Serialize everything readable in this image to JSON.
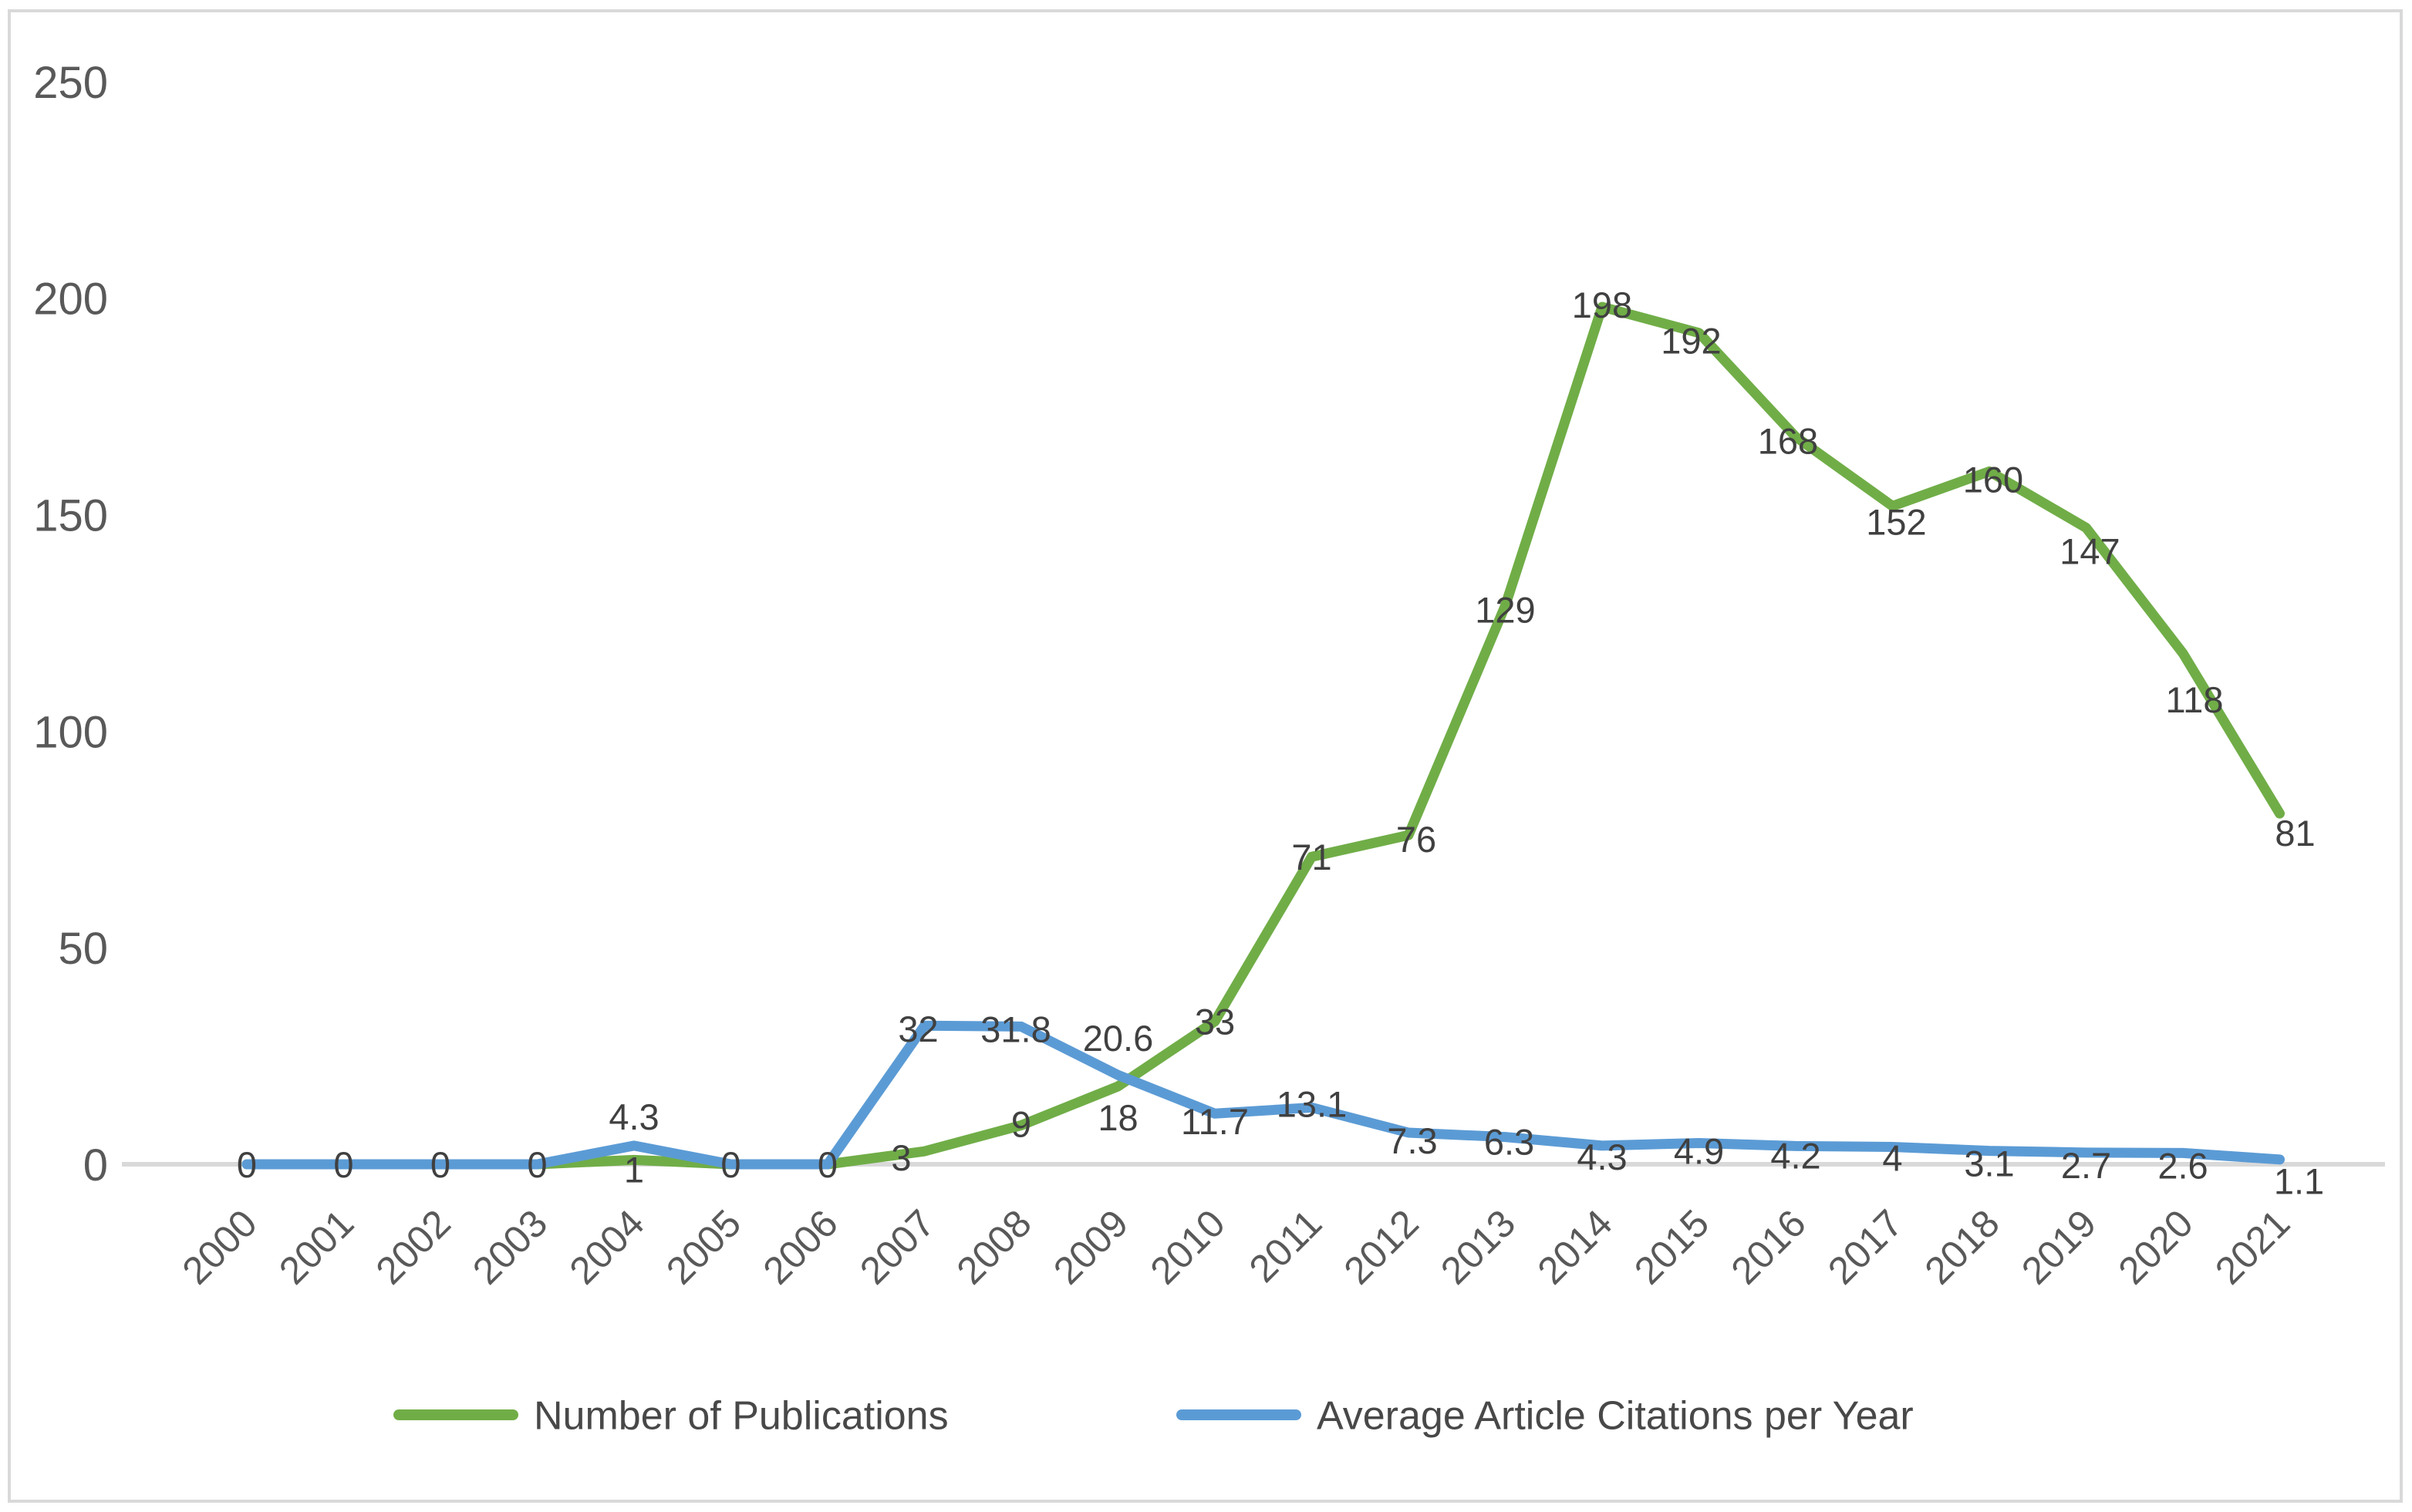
{
  "chart_data": {
    "type": "line",
    "title": "",
    "xlabel": "",
    "ylabel": "",
    "categories": [
      "2000",
      "2001",
      "2002",
      "2003",
      "2004",
      "2005",
      "2006",
      "2007",
      "2008",
      "2009",
      "2010",
      "2011",
      "2012",
      "2013",
      "2014",
      "2015",
      "2016",
      "2017",
      "2018",
      "2019",
      "2020",
      "2021"
    ],
    "series": [
      {
        "name": "Number of Publications",
        "color": "#70AD47",
        "values": [
          0,
          0,
          0,
          0,
          1,
          0,
          0,
          3,
          9,
          18,
          33,
          71,
          76,
          129,
          198,
          192,
          168,
          152,
          160,
          147,
          118,
          81
        ],
        "labels": [
          "0",
          "0",
          "0",
          "0",
          "1",
          "0",
          "0",
          "3",
          "9",
          "18",
          "33",
          "71",
          "76",
          "129",
          "198",
          "192",
          "168",
          "152",
          "160",
          "147",
          "118",
          "81"
        ]
      },
      {
        "name": "Average Article Citations per Year",
        "color": "#5B9BD5",
        "values": [
          0,
          0,
          0,
          0,
          4.3,
          0,
          0,
          32,
          31.8,
          20.6,
          11.7,
          13.1,
          7.3,
          6.3,
          4.3,
          4.9,
          4.2,
          4,
          3.1,
          2.7,
          2.6,
          1.1
        ],
        "labels": [
          "",
          "",
          "",
          "",
          "4.3",
          "",
          "",
          "32",
          "31.8",
          "20.6",
          "11.7",
          "13.1",
          "7.3",
          "6.3",
          "4.3",
          "4.9",
          "4.2",
          "4",
          "3.1",
          "2.7",
          "2.6",
          "1.1"
        ]
      }
    ],
    "ylim": [
      0,
      250
    ],
    "yticks": [
      "0",
      "50",
      "100",
      "150",
      "200",
      "250"
    ],
    "grid": false,
    "legend_position": "bottom"
  },
  "colors": {
    "axis_line": "#D9D9D9",
    "frame_border": "#D9D9D9",
    "axis_text": "#595959",
    "data_label_text": "#404040",
    "legend_text": "#484848",
    "background": "#FFFFFF"
  }
}
